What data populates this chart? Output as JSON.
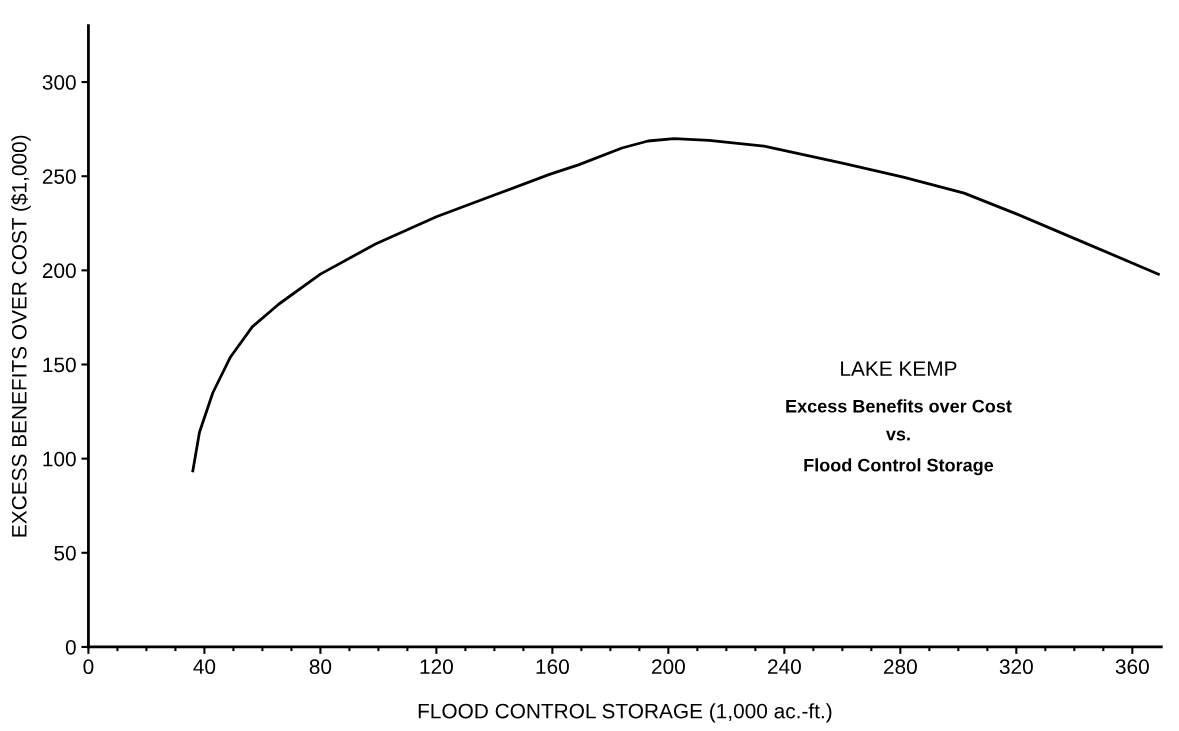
{
  "chart_data": {
    "type": "line",
    "xlabel": "FLOOD CONTROL STORAGE (1,000 ac.-ft.)",
    "ylabel": "EXCESS BENEFITS OVER COST ($1,000)",
    "annotations": [
      "LAKE KEMP",
      "Excess Benefits over Cost",
      "vs.",
      "Flood Control Storage"
    ],
    "x": [
      36,
      38.3,
      42.9,
      49,
      56.5,
      65.6,
      80,
      99,
      120,
      140,
      159,
      169,
      184,
      193,
      202,
      214,
      233,
      260,
      281,
      302,
      320,
      343,
      369
    ],
    "series": [
      {
        "color": "#000000",
        "values": [
          93.5,
          114,
          135,
          154,
          170,
          182,
          198,
          214,
          228.5,
          240,
          251,
          256,
          265,
          268.7,
          270,
          269,
          266,
          257,
          249.5,
          241,
          230,
          215,
          198
        ]
      }
    ],
    "xlim": [
      0,
      370
    ],
    "ylim": [
      0,
      330
    ],
    "xticks": [
      0,
      {
        "value": 10,
        "label": null
      },
      {
        "value": 20,
        "label": null
      },
      {
        "value": 30,
        "label": null
      },
      40,
      {
        "value": 50,
        "label": null
      },
      {
        "value": 60,
        "label": null
      },
      {
        "value": 70,
        "label": null
      },
      80,
      {
        "value": 90,
        "label": null
      },
      {
        "value": 100,
        "label": null
      },
      {
        "value": 110,
        "label": null
      },
      120,
      {
        "value": 130,
        "label": null
      },
      {
        "value": 140,
        "label": null
      },
      {
        "value": 150,
        "label": null
      },
      160,
      {
        "value": 170,
        "label": null
      },
      {
        "value": 180,
        "label": null
      },
      {
        "value": 190,
        "label": null
      },
      200,
      {
        "value": 210,
        "label": null
      },
      {
        "value": 220,
        "label": null
      },
      {
        "value": 230,
        "label": null
      },
      240,
      {
        "value": 250,
        "label": null
      },
      {
        "value": 260,
        "label": null
      },
      {
        "value": 270,
        "label": null
      },
      280,
      {
        "value": 290,
        "label": null
      },
      {
        "value": 300,
        "label": null
      },
      {
        "value": 310,
        "label": null
      },
      320,
      {
        "value": 330,
        "label": null
      },
      {
        "value": 340,
        "label": null
      },
      {
        "value": 350,
        "label": null
      },
      360
    ],
    "yticks": [
      0,
      50,
      100,
      150,
      200,
      250,
      300
    ],
    "grid": false,
    "legend": false,
    "marker": "none",
    "line_style": "solid"
  }
}
